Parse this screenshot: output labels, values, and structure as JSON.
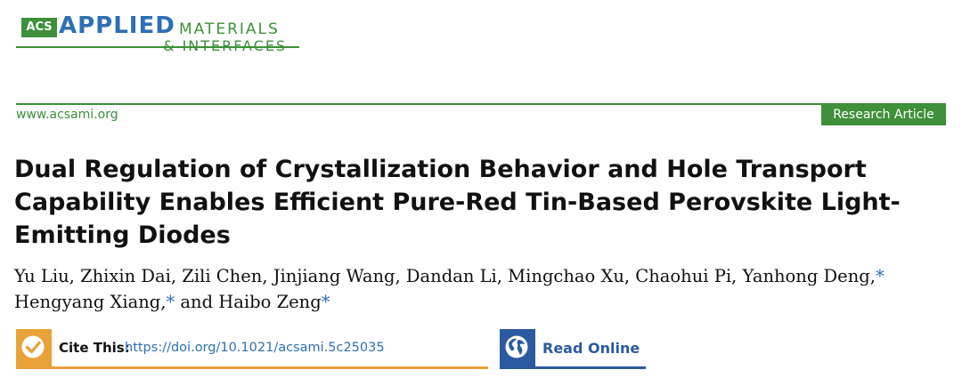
{
  "journal": {
    "acs": "ACS",
    "applied": "APPLIED",
    "materials": "MATERIALS",
    "interfaces": "& INTERFACES"
  },
  "header": {
    "website": "www.acsami.org",
    "article_type": "Research Article"
  },
  "article": {
    "title": "Dual Regulation of Crystallization Behavior and Hole Transport Capability Enables Efficient Pure-Red Tin-Based Perovskite Light-Emitting Diodes",
    "authors_line1": "Yu Liu, Zhixin Dai, Zili Chen, Jinjiang Wang, Dandan Li, Mingchao Xu, Chaohui Pi, Yanhong Deng,",
    "author_a": "Hengyang Xiang,",
    "authors_and": " and Haibo Zeng",
    "corresponding_mark": "*"
  },
  "actions": {
    "cite_label": "Cite This:",
    "cite_link": "https://doi.org/10.1021/acsami.5c25035",
    "read_online": "Read Online"
  },
  "colors": {
    "green": "#3f8f3b",
    "blue": "#2f6fb4",
    "orange": "#e8a23a",
    "dark_blue": "#2c5aa0"
  }
}
